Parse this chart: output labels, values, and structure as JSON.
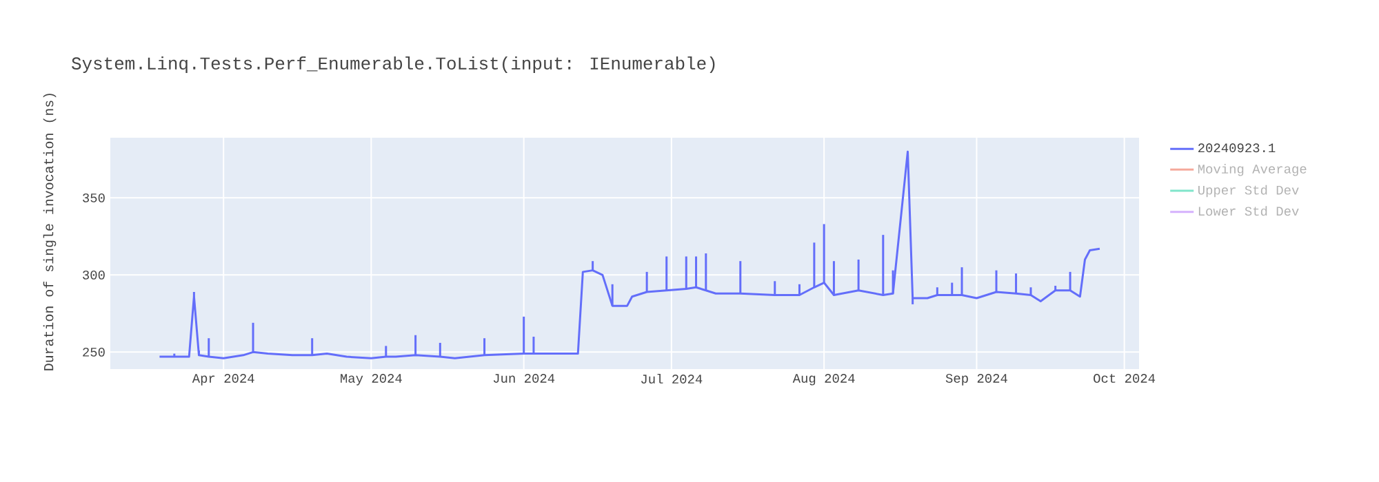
{
  "chart_data": {
    "type": "line",
    "title": "System.Linq.Tests.Perf_Enumerable.ToList(input: IEnumerable)",
    "ylabel": "Duration of single invocation (ns)",
    "xlim": [
      "2024-03-09",
      "2024-10-04"
    ],
    "xticks": [
      {
        "value": "2024-04-01",
        "label": "Apr 2024"
      },
      {
        "value": "2024-05-01",
        "label": "May 2024"
      },
      {
        "value": "2024-06-01",
        "label": "Jun 2024"
      },
      {
        "value": "2024-07-01",
        "label": "Jul 2024"
      },
      {
        "value": "2024-08-01",
        "label": "Aug 2024"
      },
      {
        "value": "2024-09-01",
        "label": "Sep 2024"
      },
      {
        "value": "2024-10-01",
        "label": "Oct 2024"
      }
    ],
    "ylim": [
      239,
      389
    ],
    "yticks": [
      250,
      300,
      350
    ],
    "grid": true,
    "legend": "right",
    "series": [
      {
        "name": "20240923.1",
        "color": "#636efa",
        "x": [
          "2024-03-19",
          "2024-03-22",
          "2024-03-25",
          "2024-03-26",
          "2024-03-27",
          "2024-03-29",
          "2024-04-01",
          "2024-04-05",
          "2024-04-07",
          "2024-04-10",
          "2024-04-15",
          "2024-04-19",
          "2024-04-22",
          "2024-04-26",
          "2024-05-01",
          "2024-05-04",
          "2024-05-06",
          "2024-05-10",
          "2024-05-15",
          "2024-05-18",
          "2024-05-24",
          "2024-06-01",
          "2024-06-03",
          "2024-06-10",
          "2024-06-12",
          "2024-06-13",
          "2024-06-15",
          "2024-06-17",
          "2024-06-19",
          "2024-06-22",
          "2024-06-23",
          "2024-06-26",
          "2024-06-30",
          "2024-07-04",
          "2024-07-06",
          "2024-07-08",
          "2024-07-10",
          "2024-07-15",
          "2024-07-22",
          "2024-07-27",
          "2024-07-30",
          "2024-08-01",
          "2024-08-03",
          "2024-08-08",
          "2024-08-13",
          "2024-08-15",
          "2024-08-18",
          "2024-08-19",
          "2024-08-22",
          "2024-08-24",
          "2024-08-27",
          "2024-08-29",
          "2024-09-01",
          "2024-09-05",
          "2024-09-09",
          "2024-09-12",
          "2024-09-14",
          "2024-09-17",
          "2024-09-20",
          "2024-09-22",
          "2024-09-23",
          "2024-09-24",
          "2024-09-26"
        ],
        "values": [
          247,
          247,
          247,
          286,
          248,
          247,
          246,
          248,
          250,
          249,
          248,
          248,
          249,
          247,
          246,
          247,
          247,
          248,
          247,
          246,
          248,
          249,
          249,
          249,
          249,
          302,
          303,
          300,
          280,
          280,
          286,
          289,
          290,
          291,
          292,
          290,
          288,
          288,
          287,
          287,
          292,
          295,
          287,
          290,
          287,
          288,
          380,
          285,
          285,
          287,
          287,
          287,
          285,
          289,
          288,
          287,
          283,
          290,
          290,
          286,
          310,
          316,
          317
        ],
        "errors": [
          null,
          [
            247,
            249
          ],
          null,
          [
            286,
            289
          ],
          [
            248,
            251
          ],
          [
            247,
            259
          ],
          null,
          null,
          [
            250,
            269
          ],
          null,
          null,
          [
            248,
            259
          ],
          null,
          null,
          null,
          [
            247,
            254
          ],
          null,
          [
            248,
            261
          ],
          [
            247,
            256
          ],
          null,
          [
            248,
            259
          ],
          [
            249,
            273
          ],
          [
            249,
            260
          ],
          null,
          null,
          null,
          [
            303,
            309
          ],
          null,
          [
            280,
            294
          ],
          null,
          null,
          [
            289,
            302
          ],
          [
            290,
            312
          ],
          [
            291,
            312
          ],
          [
            292,
            312
          ],
          [
            290,
            314
          ],
          null,
          [
            288,
            309
          ],
          [
            287,
            296
          ],
          [
            287,
            294
          ],
          [
            292,
            321
          ],
          [
            295,
            333
          ],
          [
            287,
            309
          ],
          [
            290,
            310
          ],
          [
            287,
            326
          ],
          [
            288,
            303
          ],
          null,
          [
            281,
            285
          ],
          null,
          [
            287,
            292
          ],
          [
            287,
            295
          ],
          [
            287,
            305
          ],
          null,
          [
            289,
            303
          ],
          [
            288,
            301
          ],
          [
            287,
            292
          ],
          null,
          [
            290,
            293
          ],
          [
            290,
            302
          ],
          null,
          null,
          null,
          null
        ]
      },
      {
        "name": "Moving Average",
        "color": "#f5a99b"
      },
      {
        "name": "Upper Std Dev",
        "color": "#80e5cb"
      },
      {
        "name": "Lower Std Dev",
        "color": "#d5b1fd"
      }
    ]
  }
}
